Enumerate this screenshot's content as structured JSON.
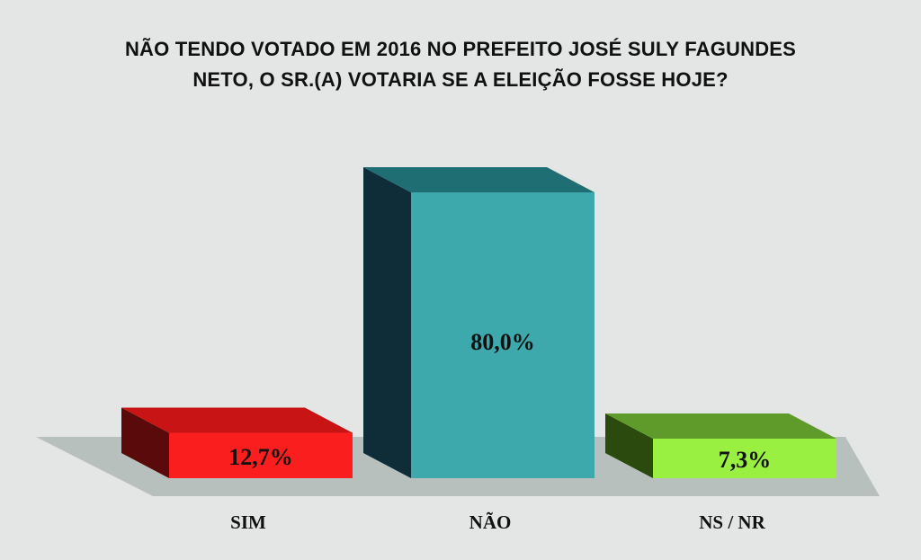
{
  "chart_data": {
    "type": "bar",
    "title_lines": [
      "NÃO TENDO VOTADO EM 2016 NO PREFEITO JOSÉ SULY FAGUNDES",
      "NETO, O SR.(A) VOTARIA SE A ELEIÇÃO FOSSE HOJE?"
    ],
    "categories": [
      "SIM",
      "NÃO",
      "NS / NR"
    ],
    "values": [
      12.7,
      80.0,
      7.3
    ],
    "value_labels": [
      "12,7%",
      "80,0%",
      "7,3%"
    ],
    "colors": [
      {
        "front": "#fa1e1e",
        "side": "#5a0a0a",
        "top": "#c81414"
      },
      {
        "front": "#3ea9ad",
        "side": "#0f2d38",
        "top": "#1f6e74"
      },
      {
        "front": "#9af040",
        "side": "#2a4a0e",
        "top": "#5f9b2a"
      }
    ],
    "floor_color": "#b7c0bd",
    "background": "#e3e6e4",
    "ylim": [
      0,
      80
    ],
    "grid": false,
    "legend": "none"
  }
}
